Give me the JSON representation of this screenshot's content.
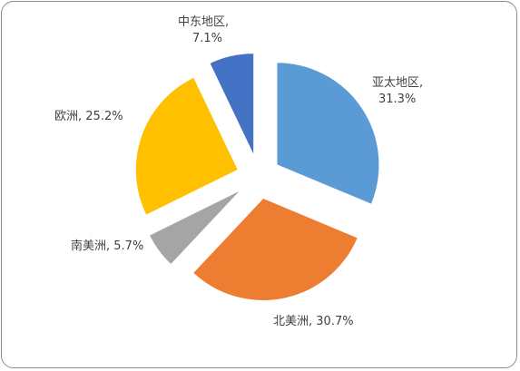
{
  "chart_data": {
    "type": "pie",
    "exploded": true,
    "slices": [
      {
        "label": "亚太地区",
        "value": 31.3,
        "value_text": "31.3%",
        "color": "#5b9bd5"
      },
      {
        "label": "北美洲",
        "value": 30.7,
        "value_text": "30.7%",
        "color": "#ed7d31"
      },
      {
        "label": "南美洲",
        "value": 5.7,
        "value_text": "5.7%",
        "color": "#a5a5a5"
      },
      {
        "label": "欧洲",
        "value": 25.2,
        "value_text": "25.2%",
        "color": "#ffc000"
      },
      {
        "label": "中东地区",
        "value": 7.1,
        "value_text": "7.1%",
        "color": "#4472c4"
      }
    ],
    "legend": "none"
  }
}
